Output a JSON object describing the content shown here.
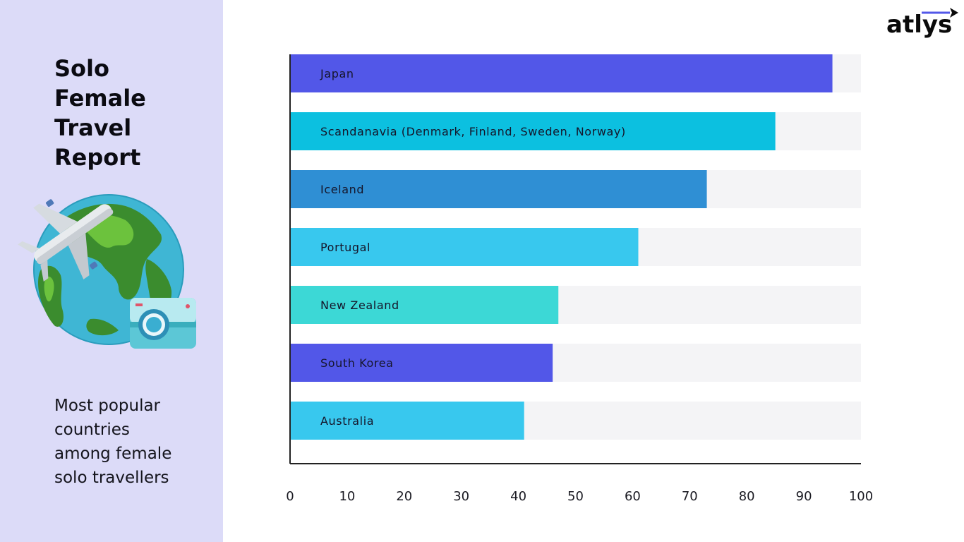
{
  "sidebar": {
    "title_lines": [
      "Solo",
      "Female",
      "Travel",
      "Report"
    ],
    "subtitle_lines": [
      "Most popular",
      "countries",
      "among female",
      "solo travellers"
    ]
  },
  "logo": {
    "text": "atlys"
  },
  "colors": {
    "sidebar_bg": "#dcdbf8",
    "track": "#f4f4f6",
    "axis": "#222222"
  },
  "chart_data": {
    "type": "bar",
    "orientation": "horizontal",
    "categories": [
      "Japan",
      "Scandanavia (Denmark, Finland, Sweden, Norway)",
      "Iceland",
      "Portugal",
      "New Zealand",
      "South Korea",
      "Australia"
    ],
    "values": [
      95,
      85,
      73,
      61,
      47,
      46,
      41
    ],
    "bar_colors": [
      "#5257e8",
      "#0cc0e0",
      "#2f8fd4",
      "#38c8ee",
      "#3cd8d6",
      "#5257e8",
      "#38c8ee"
    ],
    "xlim": [
      0,
      100
    ],
    "xticks": [
      0,
      10,
      20,
      30,
      40,
      50,
      60,
      70,
      80,
      90,
      100
    ],
    "tick_labels": [
      "0",
      "10",
      "20",
      "30",
      "40",
      "50",
      "60",
      "70",
      "80",
      "90",
      "100"
    ],
    "grid": false
  }
}
